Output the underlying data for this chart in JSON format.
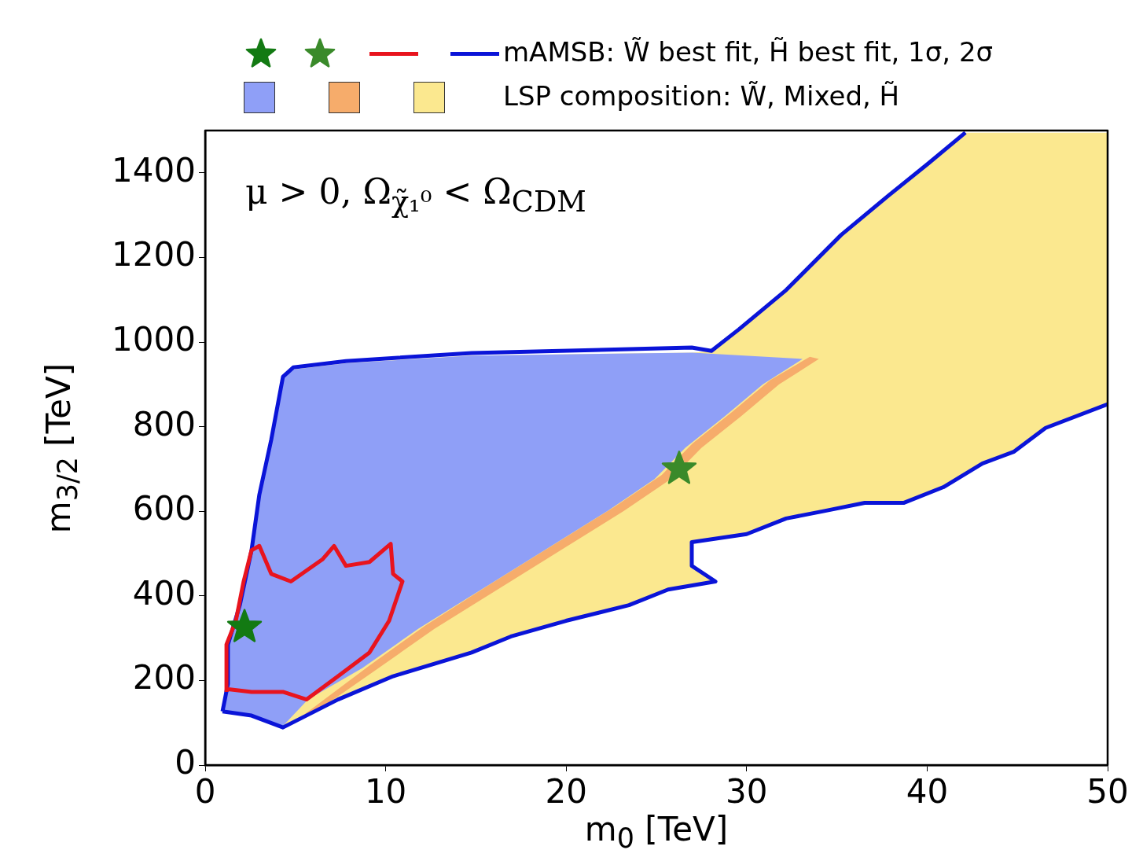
{
  "chart_data": {
    "type": "line",
    "xlabel": "m$_{0}$ [TeV]",
    "ylabel": "m$_{3/2}$ [TeV]",
    "xlim": [
      0,
      50
    ],
    "xticks": [
      0,
      10,
      20,
      30,
      40,
      50
    ],
    "ylim": [
      0,
      1500
    ],
    "yticks": [
      0,
      200,
      400,
      600,
      800,
      1000,
      1200,
      1400
    ],
    "grid": false,
    "annotations": [
      "μ > 0, Ω$_{χ̃₁⁰}$ < Ω$_{CDM}$",
      "mAMSB: W̃ best fit, H̃ best fit, 1σ, 2σ",
      "LSP composition: W̃, Mixed, H̃"
    ],
    "series": [
      {
        "type": "scatter",
        "marker": "star",
        "color": "#137a13",
        "x": [
          2.18
        ],
        "values": [
          326
        ]
      },
      {
        "type": "scatter",
        "marker": "star",
        "color": "#3a8a2a",
        "x": [
          26.26
        ],
        "values": [
          700
        ]
      },
      {
        "color": "#e8141e",
        "x": [
          1.18,
          1.18,
          1.7,
          2.13,
          2.57,
          3.0,
          3.66,
          4.75,
          6.49,
          7.14,
          7.8,
          9.1,
          10.28,
          10.41,
          10.93,
          10.19,
          9.1,
          7.36,
          5.62,
          4.31,
          2.57,
          1.18
        ],
        "values": [
          173,
          285,
          341,
          434,
          508,
          518,
          452,
          434,
          486,
          518,
          471,
          480,
          523,
          452,
          434,
          341,
          266,
          210,
          155,
          173,
          173,
          180
        ]
      },
      {
        "color": "#0a14d8",
        "x": [
          0.96,
          1.26,
          1.26,
          1.92,
          2.57,
          3.0,
          3.66,
          4.31,
          4.88,
          7.8,
          14.76,
          26.96,
          28.05,
          29.57,
          32.19,
          35.23,
          37.85,
          40.03,
          42.12,
          null,
          50,
          46.56,
          44.82,
          43.07,
          40.9,
          38.72,
          36.54,
          34.36,
          32.19,
          30.0,
          26.96,
          26.96,
          28.27,
          25.65,
          23.48,
          19.99,
          16.94,
          14.76,
          10.41,
          7.36,
          4.31,
          2.57,
          0.96
        ],
        "values": [
          127,
          192,
          285,
          378,
          508,
          639,
          769,
          918,
          940,
          955,
          974,
          987,
          979,
          1030,
          1123,
          1253,
          1346,
          1421,
          1495,
          null,
          853,
          797,
          741,
          713,
          657,
          620,
          620,
          601,
          583,
          546,
          527,
          471,
          434,
          415,
          378,
          341,
          304,
          266,
          210,
          155,
          89,
          117,
          127
        ]
      },
      {
        "type": "area",
        "color": "#8f9ff7",
        "x": [
          1.0,
          1.3,
          1.9,
          2.6,
          3.0,
          3.7,
          4.3,
          4.9,
          7.8,
          14.8,
          27,
          33.1,
          30.9,
          28.8,
          26.6,
          24.9,
          22.3,
          18.8,
          15.3,
          11.8,
          8.7,
          5.7,
          4.3,
          2.6
        ],
        "values": [
          130,
          290,
          380,
          510,
          640,
          770,
          915,
          935,
          950,
          968,
          975,
          960,
          900,
          825,
          750,
          676,
          601,
          508,
          415,
          322,
          229,
          155,
          92,
          118
        ]
      },
      {
        "type": "area",
        "color": "#f6ac6b",
        "x": [
          5.5,
          9.1,
          12.2,
          15.7,
          19.2,
          22.7,
          25.3,
          27,
          29.2,
          31.3,
          33.5,
          34,
          31.8,
          29.7,
          27.5,
          25.8,
          23.2,
          19.7,
          16.2,
          12.7,
          9.6,
          6.6
        ],
        "values": [
          120,
          235,
          330,
          425,
          518,
          611,
          686,
          760,
          835,
          910,
          965,
          960,
          900,
          825,
          750,
          676,
          601,
          508,
          415,
          322,
          229,
          140
        ]
      },
      {
        "type": "area",
        "color": "#fbe88f",
        "x": [
          4.9,
          7.8,
          14.8,
          27,
          28.1,
          29.6,
          32.2,
          35.2,
          37.9,
          40,
          42.1,
          50,
          50,
          46.6,
          44.8,
          43.1,
          40.9,
          38.7,
          36.5,
          34.4,
          32.2,
          30,
          27,
          27,
          28.3,
          25.7,
          23.5,
          20,
          16.9,
          14.8,
          10.4,
          7.4,
          4.3
        ],
        "values": [
          935,
          950,
          968,
          975,
          979,
          1030,
          1123,
          1253,
          1346,
          1421,
          1495,
          1495,
          853,
          797,
          741,
          713,
          657,
          620,
          620,
          601,
          583,
          546,
          527,
          471,
          434,
          415,
          378,
          341,
          304,
          266,
          210,
          155,
          92
        ]
      }
    ]
  }
}
